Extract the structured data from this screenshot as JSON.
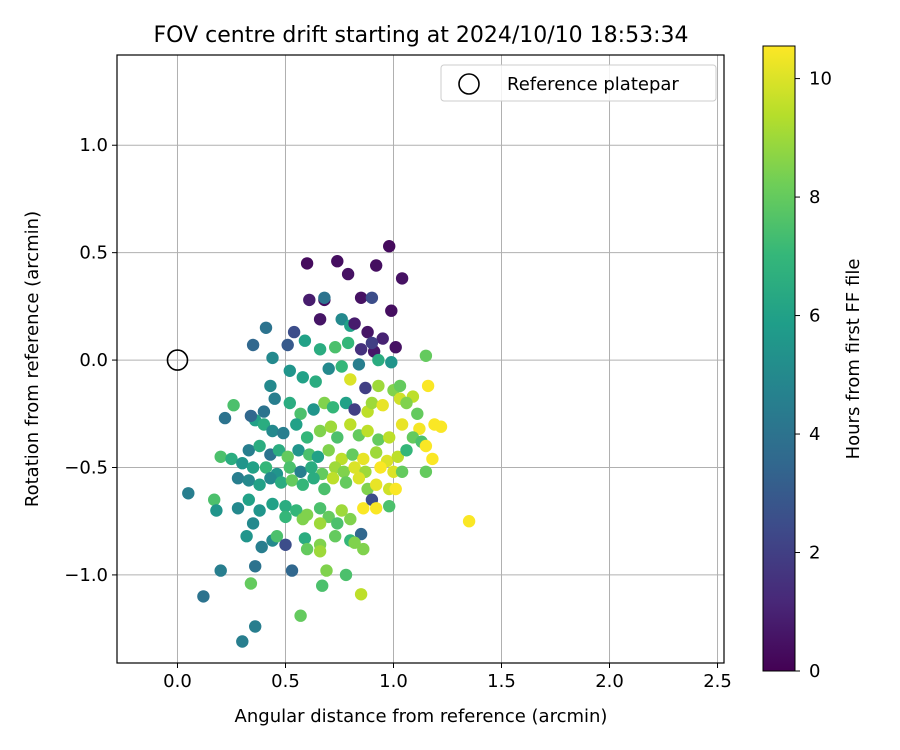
{
  "chart_data": {
    "type": "scatter",
    "title": "FOV centre drift starting at 2024/10/10 18:53:34",
    "xlabel": "Angular distance from reference (arcmin)",
    "ylabel": "Rotation from reference (arcmin)",
    "xlim": [
      -0.28,
      2.53
    ],
    "ylim": [
      -1.41,
      1.42
    ],
    "x_ticks": [
      0.0,
      0.5,
      1.0,
      1.5,
      2.0,
      2.5
    ],
    "x_tick_labels": [
      "0.0",
      "0.5",
      "1.0",
      "1.5",
      "2.0",
      "2.5"
    ],
    "y_ticks": [
      -1.0,
      -0.5,
      0.0,
      0.5,
      1.0
    ],
    "y_tick_labels": [
      "−1.0",
      "−0.5",
      "0.0",
      "0.5",
      "1.0"
    ],
    "grid": true,
    "legend": {
      "position": "top-right",
      "entries": [
        {
          "label": "Reference platepar",
          "marker": "open-circle"
        }
      ]
    },
    "reference_point": {
      "x": 0.0,
      "y": 0.0
    },
    "colorbar": {
      "label": "Hours from first FF file",
      "range": [
        0,
        10.55
      ],
      "ticks": [
        0,
        2,
        4,
        6,
        8,
        10
      ],
      "tick_labels": [
        "0",
        "2",
        "4",
        "6",
        "8",
        "10"
      ],
      "colormap": "viridis"
    },
    "colormap_stops": [
      "#440154",
      "#482878",
      "#3e4989",
      "#31688e",
      "#26828e",
      "#1f9e89",
      "#35b779",
      "#6ece58",
      "#b5de2b",
      "#fde725"
    ],
    "series": [
      {
        "points": [
          [
            0.6,
            0.45,
            0.3
          ],
          [
            0.74,
            0.46,
            0.4
          ],
          [
            0.79,
            0.4,
            0.5
          ],
          [
            0.92,
            0.44,
            0.4
          ],
          [
            0.98,
            0.53,
            0.3
          ],
          [
            1.04,
            0.38,
            0.5
          ],
          [
            0.61,
            0.28,
            0.8
          ],
          [
            0.66,
            0.19,
            0.6
          ],
          [
            0.68,
            0.28,
            0.3
          ],
          [
            0.85,
            0.29,
            0.5
          ],
          [
            0.99,
            0.23,
            0.4
          ],
          [
            0.9,
            0.29,
            2.5
          ],
          [
            0.68,
            0.29,
            4.0
          ],
          [
            0.76,
            0.19,
            5.0
          ],
          [
            0.8,
            0.16,
            6.0
          ],
          [
            0.82,
            0.17,
            0.8
          ],
          [
            0.88,
            0.13,
            0.6
          ],
          [
            0.95,
            0.1,
            1.0
          ],
          [
            0.91,
            0.04,
            0.7
          ],
          [
            1.01,
            0.06,
            0.5
          ],
          [
            0.54,
            0.13,
            2.5
          ],
          [
            0.41,
            0.15,
            4.0
          ],
          [
            0.35,
            0.07,
            3.5
          ],
          [
            0.51,
            0.07,
            3.0
          ],
          [
            0.59,
            0.09,
            6.0
          ],
          [
            0.66,
            0.05,
            6.5
          ],
          [
            0.73,
            0.06,
            7.5
          ],
          [
            0.79,
            0.08,
            7.0
          ],
          [
            0.85,
            0.05,
            1.5
          ],
          [
            0.9,
            0.08,
            2.0
          ],
          [
            0.93,
            0.0,
            6.5
          ],
          [
            0.99,
            -0.01,
            5.5
          ],
          [
            0.44,
            0.01,
            5.0
          ],
          [
            0.52,
            -0.05,
            5.5
          ],
          [
            0.58,
            -0.08,
            6.0
          ],
          [
            0.64,
            -0.1,
            6.5
          ],
          [
            0.7,
            -0.04,
            5.0
          ],
          [
            0.76,
            -0.03,
            7.0
          ],
          [
            0.8,
            -0.09,
            10.0
          ],
          [
            0.84,
            -0.02,
            4.5
          ],
          [
            0.87,
            -0.13,
            2.0
          ],
          [
            0.93,
            -0.12,
            9.0
          ],
          [
            1.0,
            -0.14,
            8.5
          ],
          [
            1.03,
            -0.12,
            8.0
          ],
          [
            1.09,
            -0.17,
            9.5
          ],
          [
            1.15,
            0.02,
            8.0
          ],
          [
            1.16,
            -0.12,
            10.5
          ],
          [
            0.43,
            -0.12,
            5.0
          ],
          [
            0.45,
            -0.18,
            4.5
          ],
          [
            0.4,
            -0.24,
            4.0
          ],
          [
            0.36,
            -0.28,
            6.0
          ],
          [
            0.34,
            -0.26,
            3.5
          ],
          [
            0.26,
            -0.21,
            7.5
          ],
          [
            0.22,
            -0.27,
            4.0
          ],
          [
            0.52,
            -0.2,
            6.5
          ],
          [
            0.57,
            -0.25,
            7.5
          ],
          [
            0.63,
            -0.23,
            5.5
          ],
          [
            0.68,
            -0.2,
            8.5
          ],
          [
            0.72,
            -0.22,
            7.0
          ],
          [
            0.78,
            -0.2,
            6.0
          ],
          [
            0.82,
            -0.23,
            2.0
          ],
          [
            0.88,
            -0.24,
            9.5
          ],
          [
            0.9,
            -0.2,
            9.0
          ],
          [
            0.95,
            -0.21,
            10.2
          ],
          [
            1.03,
            -0.18,
            9.8
          ],
          [
            1.06,
            -0.2,
            8.5
          ],
          [
            1.11,
            -0.25,
            8.0
          ],
          [
            1.04,
            -0.3,
            10.2
          ],
          [
            1.12,
            -0.32,
            10.4
          ],
          [
            1.19,
            -0.3,
            10.5
          ],
          [
            1.22,
            -0.31,
            10.5
          ],
          [
            0.4,
            -0.3,
            6.5
          ],
          [
            0.44,
            -0.33,
            5.0
          ],
          [
            0.49,
            -0.34,
            4.5
          ],
          [
            0.55,
            -0.3,
            6.0
          ],
          [
            0.6,
            -0.36,
            7.0
          ],
          [
            0.66,
            -0.33,
            8.5
          ],
          [
            0.71,
            -0.31,
            9.0
          ],
          [
            0.74,
            -0.36,
            7.5
          ],
          [
            0.8,
            -0.3,
            9.5
          ],
          [
            0.84,
            -0.35,
            8.0
          ],
          [
            0.88,
            -0.33,
            9.5
          ],
          [
            0.93,
            -0.37,
            8.0
          ],
          [
            0.98,
            -0.36,
            9.5
          ],
          [
            1.09,
            -0.36,
            8.0
          ],
          [
            1.13,
            -0.38,
            7.5
          ],
          [
            1.15,
            -0.4,
            10.5
          ],
          [
            0.33,
            -0.42,
            4.5
          ],
          [
            0.38,
            -0.4,
            6.5
          ],
          [
            0.43,
            -0.44,
            4.0
          ],
          [
            0.47,
            -0.42,
            6.5
          ],
          [
            0.51,
            -0.45,
            8.0
          ],
          [
            0.56,
            -0.42,
            5.5
          ],
          [
            0.61,
            -0.44,
            7.5
          ],
          [
            0.65,
            -0.45,
            6.0
          ],
          [
            0.7,
            -0.42,
            8.5
          ],
          [
            0.76,
            -0.46,
            9.5
          ],
          [
            0.81,
            -0.44,
            8.0
          ],
          [
            0.86,
            -0.46,
            10.2
          ],
          [
            0.92,
            -0.43,
            9.0
          ],
          [
            0.97,
            -0.47,
            10.0
          ],
          [
            1.02,
            -0.45,
            9.5
          ],
          [
            1.06,
            -0.42,
            7.0
          ],
          [
            1.18,
            -0.46,
            10.5
          ],
          [
            0.2,
            -0.45,
            7.5
          ],
          [
            0.25,
            -0.46,
            6.5
          ],
          [
            0.3,
            -0.48,
            5.5
          ],
          [
            0.35,
            -0.5,
            6.0
          ],
          [
            0.41,
            -0.5,
            7.0
          ],
          [
            0.46,
            -0.53,
            5.5
          ],
          [
            0.52,
            -0.5,
            7.5
          ],
          [
            0.57,
            -0.52,
            4.5
          ],
          [
            0.62,
            -0.5,
            6.5
          ],
          [
            0.67,
            -0.53,
            8.0
          ],
          [
            0.73,
            -0.5,
            9.0
          ],
          [
            0.77,
            -0.52,
            8.5
          ],
          [
            0.82,
            -0.5,
            10.0
          ],
          [
            0.87,
            -0.52,
            9.0
          ],
          [
            0.94,
            -0.5,
            10.5
          ],
          [
            1.0,
            -0.52,
            10.0
          ],
          [
            1.04,
            -0.52,
            8.0
          ],
          [
            1.15,
            -0.52,
            8.0
          ],
          [
            0.28,
            -0.55,
            4.5
          ],
          [
            0.33,
            -0.56,
            5.0
          ],
          [
            0.38,
            -0.58,
            6.0
          ],
          [
            0.43,
            -0.55,
            5.0
          ],
          [
            0.48,
            -0.57,
            6.5
          ],
          [
            0.53,
            -0.56,
            8.0
          ],
          [
            0.58,
            -0.58,
            7.0
          ],
          [
            0.63,
            -0.55,
            6.5
          ],
          [
            0.68,
            -0.6,
            7.5
          ],
          [
            0.72,
            -0.55,
            9.5
          ],
          [
            0.78,
            -0.57,
            8.0
          ],
          [
            0.84,
            -0.55,
            10.0
          ],
          [
            0.88,
            -0.6,
            8.5
          ],
          [
            0.92,
            -0.58,
            10.2
          ],
          [
            0.98,
            -0.6,
            9.8
          ],
          [
            1.01,
            -0.6,
            10.5
          ],
          [
            0.05,
            -0.62,
            4.5
          ],
          [
            0.17,
            -0.65,
            7.5
          ],
          [
            0.18,
            -0.7,
            5.5
          ],
          [
            0.28,
            -0.69,
            5.0
          ],
          [
            0.33,
            -0.65,
            6.0
          ],
          [
            0.38,
            -0.7,
            5.5
          ],
          [
            0.44,
            -0.67,
            6.0
          ],
          [
            0.5,
            -0.68,
            6.5
          ],
          [
            0.55,
            -0.7,
            7.0
          ],
          [
            0.6,
            -0.72,
            8.5
          ],
          [
            0.66,
            -0.69,
            7.5
          ],
          [
            0.7,
            -0.73,
            8.0
          ],
          [
            0.76,
            -0.7,
            9.0
          ],
          [
            0.8,
            -0.74,
            8.5
          ],
          [
            0.86,
            -0.69,
            10.5
          ],
          [
            0.9,
            -0.65,
            2.5
          ],
          [
            0.92,
            -0.69,
            10.5
          ],
          [
            0.98,
            -0.68,
            7.5
          ],
          [
            1.35,
            -0.75,
            10.5
          ],
          [
            0.35,
            -0.76,
            5.0
          ],
          [
            0.5,
            -0.73,
            7.0
          ],
          [
            0.58,
            -0.74,
            8.5
          ],
          [
            0.66,
            -0.76,
            9.0
          ],
          [
            0.74,
            -0.76,
            7.5
          ],
          [
            0.85,
            -0.81,
            3.5
          ],
          [
            0.32,
            -0.82,
            5.5
          ],
          [
            0.44,
            -0.84,
            5.0
          ],
          [
            0.46,
            -0.82,
            7.5
          ],
          [
            0.5,
            -0.86,
            2.5
          ],
          [
            0.59,
            -0.83,
            6.5
          ],
          [
            0.66,
            -0.86,
            8.5
          ],
          [
            0.73,
            -0.82,
            8.0
          ],
          [
            0.8,
            -0.84,
            7.0
          ],
          [
            0.86,
            -0.88,
            8.5
          ],
          [
            0.39,
            -0.87,
            4.5
          ],
          [
            0.6,
            -0.88,
            8.0
          ],
          [
            0.66,
            -0.89,
            9.0
          ],
          [
            0.82,
            -0.85,
            8.5
          ],
          [
            0.2,
            -0.98,
            4.5
          ],
          [
            0.36,
            -0.96,
            4.0
          ],
          [
            0.53,
            -0.98,
            3.5
          ],
          [
            0.69,
            -0.98,
            8.5
          ],
          [
            0.78,
            -1.0,
            7.5
          ],
          [
            0.34,
            -1.04,
            8.0
          ],
          [
            0.67,
            -1.05,
            7.5
          ],
          [
            0.85,
            -1.09,
            9.5
          ],
          [
            0.12,
            -1.1,
            4.0
          ],
          [
            0.57,
            -1.19,
            8.0
          ],
          [
            0.36,
            -1.24,
            4.5
          ],
          [
            0.3,
            -1.31,
            4.5
          ]
        ]
      }
    ]
  }
}
